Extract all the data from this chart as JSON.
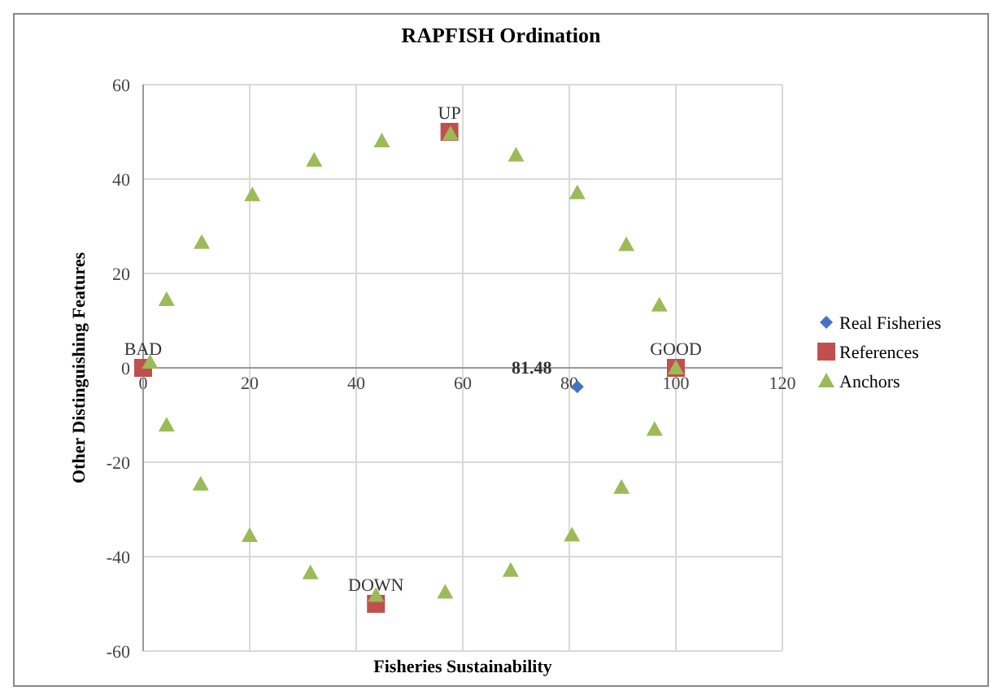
{
  "chart_data": {
    "type": "scatter",
    "title": "RAPFISH Ordination",
    "xlabel": "Fisheries Sustainability",
    "ylabel": "Other Distinguishing Features",
    "xlim": [
      0,
      120
    ],
    "xticks": [
      0,
      20,
      40,
      60,
      80,
      100,
      120
    ],
    "ylim": [
      -60,
      60
    ],
    "yticks": [
      -60,
      -40,
      -20,
      0,
      20,
      40,
      60
    ],
    "grid": true,
    "legend": "right",
    "series": [
      {
        "name": "Real Fisheries",
        "color": "#4472c4",
        "marker": "diamond",
        "x": [
          81.5
        ],
        "values": [
          -4
        ]
      },
      {
        "name": "References",
        "color": "#c0504d",
        "marker": "square",
        "x": [
          0,
          100,
          57.5,
          43.7
        ],
        "values": [
          0,
          0,
          50,
          -50
        ]
      },
      {
        "name": "Anchors",
        "color": "#9bbb59",
        "marker": "triangle",
        "x": [
          1.3,
          4.4,
          11,
          20.5,
          32.1,
          44.8,
          57.7,
          70,
          81.5,
          90.7,
          96.9,
          100,
          96,
          89.8,
          80.5,
          69,
          56.7,
          43.7,
          31.4,
          20,
          10.8,
          4.4
        ],
        "values": [
          1.2,
          14.5,
          26.6,
          36.7,
          44,
          48.1,
          49.6,
          45.1,
          37.1,
          26.1,
          13.3,
          0,
          -13,
          -25.3,
          -35.4,
          -42.9,
          -47.5,
          -48.2,
          -43.4,
          -35.5,
          -24.6,
          -12.1
        ]
      }
    ],
    "annotations": [
      {
        "text": "BAD",
        "x": 0,
        "y": 0
      },
      {
        "text": "GOOD",
        "x": 100,
        "y": 0
      },
      {
        "text": "UP",
        "x": 57.5,
        "y": 50
      },
      {
        "text": "DOWN",
        "x": 43.7,
        "y": -50
      },
      {
        "text": "81.48",
        "x": 81.5,
        "y": -4
      }
    ]
  }
}
